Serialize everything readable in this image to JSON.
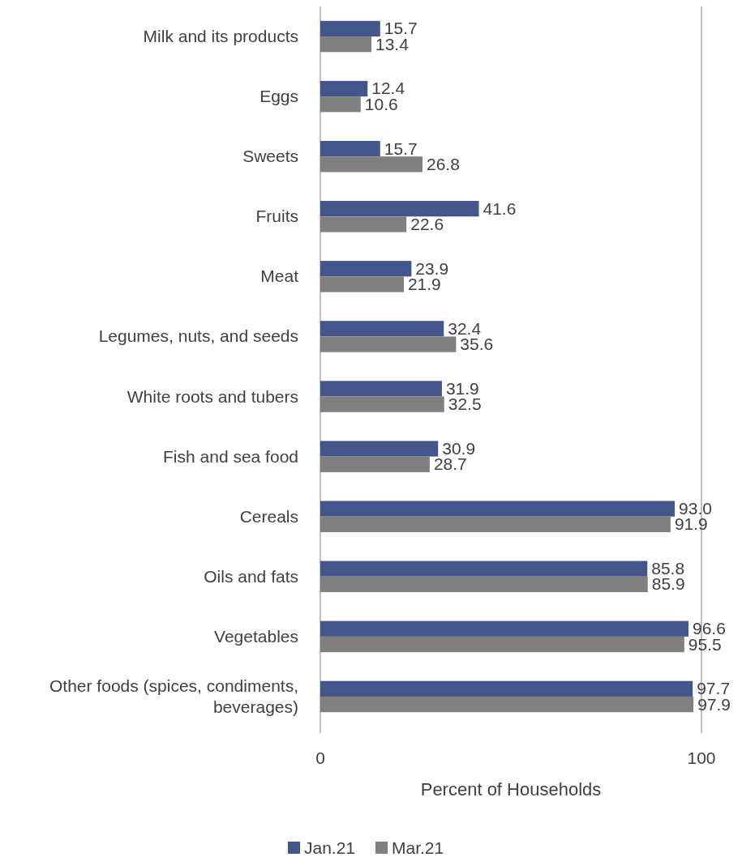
{
  "chart_data": {
    "type": "bar",
    "orientation": "horizontal",
    "xlabel": "Percent of Households",
    "categories": [
      "Milk and its products",
      "Eggs",
      "Sweets",
      "Fruits",
      "Meat",
      "Legumes, nuts, and seeds",
      "White roots and tubers",
      "Fish and sea food",
      "Cereals",
      "Oils and fats",
      "Vegetables",
      "Other foods (spices, condiments, beverages)"
    ],
    "series": [
      {
        "name": "Jan.21",
        "color": "#44558c",
        "values": [
          15.7,
          12.4,
          15.7,
          41.6,
          23.9,
          32.4,
          31.9,
          30.9,
          93.0,
          85.8,
          96.6,
          97.7
        ],
        "value_labels": [
          "15.7",
          "12.4",
          "15.7",
          "41.6",
          "23.9",
          "32.4",
          "31.9",
          "30.9",
          "93.0",
          "85.8",
          "96.6",
          "97.7"
        ]
      },
      {
        "name": "Mar.21",
        "color": "#808080",
        "values": [
          13.4,
          10.6,
          26.8,
          22.6,
          21.9,
          35.6,
          32.5,
          28.7,
          91.9,
          85.9,
          95.5,
          97.9
        ],
        "value_labels": [
          "13.4",
          "10.6",
          "26.8",
          "22.6",
          "21.9",
          "35.6",
          "32.5",
          "28.7",
          "91.9",
          "85.9",
          "95.5",
          "97.9"
        ]
      }
    ],
    "xlim": [
      0,
      100
    ],
    "xticks": [
      0,
      100
    ],
    "legend": "bottom"
  }
}
